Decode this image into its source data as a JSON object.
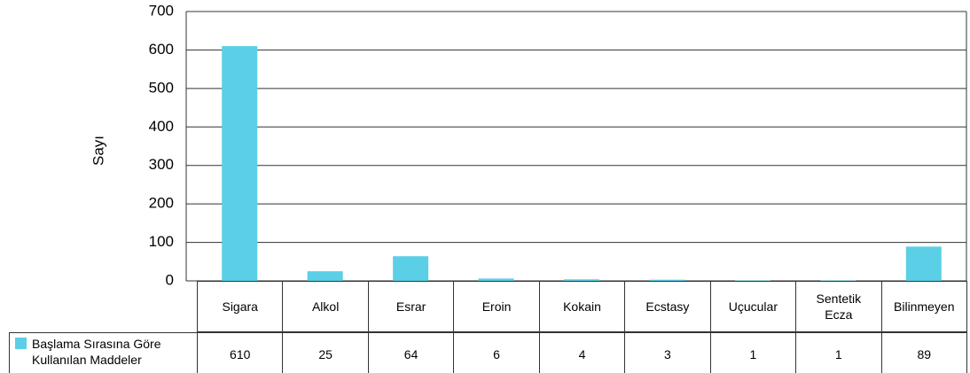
{
  "chart_data": {
    "type": "bar",
    "y_label": "Sayı",
    "categories": [
      "Sigara",
      "Alkol",
      "Esrar",
      "Eroin",
      "Kokain",
      "Ecstasy",
      "Uçucular",
      "Sentetik Ecza",
      "Bilinmeyen"
    ],
    "series": [
      {
        "name": "Başlama Sırasına Göre Kullanılan Maddeler",
        "color": "#5bcfe6",
        "values": [
          610,
          25,
          64,
          6,
          4,
          3,
          1,
          1,
          89
        ]
      }
    ],
    "ylim": [
      0,
      700
    ],
    "yticks": [
      0,
      100,
      200,
      300,
      400,
      500,
      600,
      700
    ],
    "grid": true
  }
}
